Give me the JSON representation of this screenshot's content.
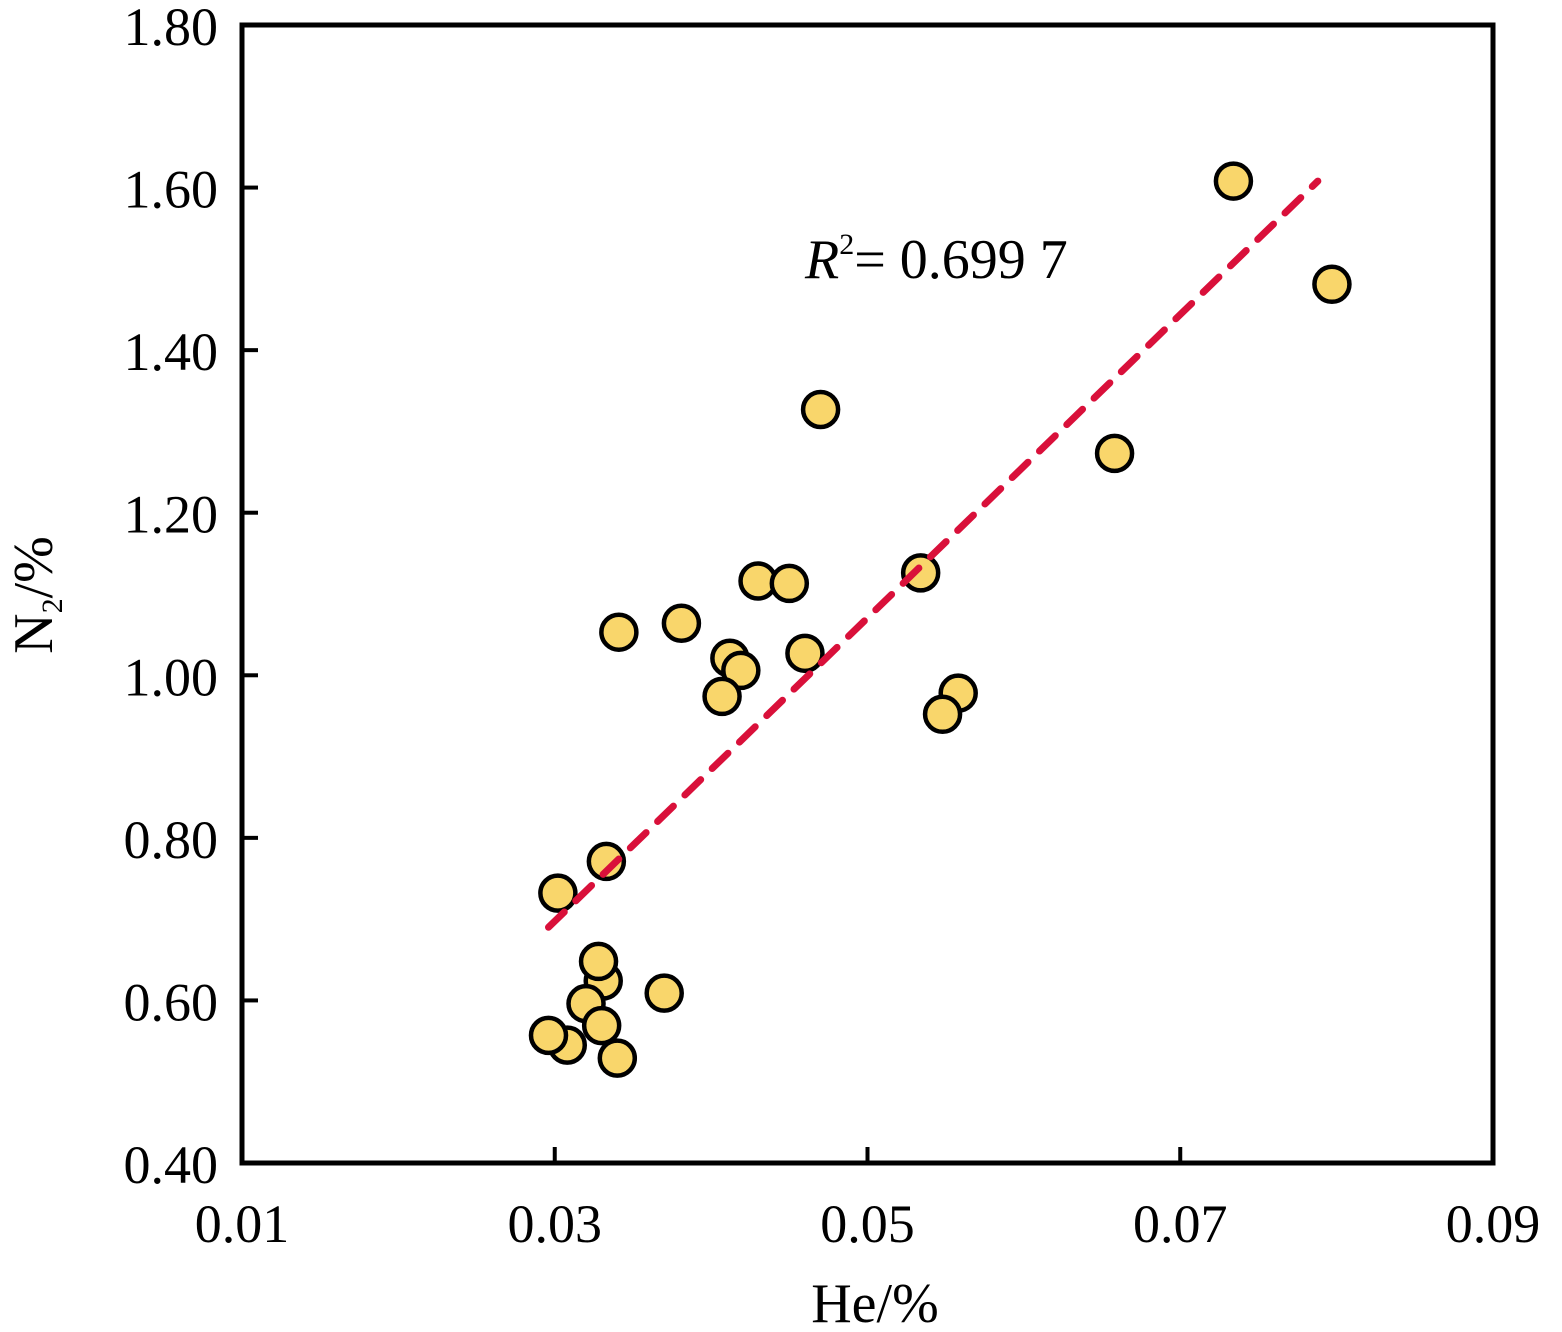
{
  "chart_data": {
    "type": "scatter",
    "title": "",
    "xlabel": "He/%",
    "ylabel_main": "N",
    "ylabel_sub": "2",
    "ylabel_tail": "/%",
    "xlim": [
      0.01,
      0.09
    ],
    "ylim": [
      0.4,
      1.8
    ],
    "xticks": [
      "0.01",
      "0.03",
      "0.05",
      "0.07",
      "0.09"
    ],
    "xtick_values": [
      0.01,
      0.03,
      0.05,
      0.07,
      0.09
    ],
    "yticks": [
      "0.40",
      "0.60",
      "0.80",
      "1.00",
      "1.20",
      "1.40",
      "1.60",
      "1.80"
    ],
    "ytick_values": [
      0.4,
      0.6,
      0.8,
      1.0,
      1.2,
      1.4,
      1.6,
      1.8
    ],
    "grid": false,
    "point_color": "#f9d66b",
    "trend_color": "#d9103a",
    "points": [
      [
        0.0734,
        1.608
      ],
      [
        0.0797,
        1.481
      ],
      [
        0.047,
        1.327
      ],
      [
        0.0658,
        1.273
      ],
      [
        0.0534,
        1.126
      ],
      [
        0.043,
        1.116
      ],
      [
        0.045,
        1.113
      ],
      [
        0.0381,
        1.064
      ],
      [
        0.0341,
        1.053
      ],
      [
        0.046,
        1.027
      ],
      [
        0.0412,
        1.021
      ],
      [
        0.0419,
        1.006
      ],
      [
        0.0407,
        0.974
      ],
      [
        0.0558,
        0.978
      ],
      [
        0.0548,
        0.952
      ],
      [
        0.0333,
        0.771
      ],
      [
        0.0302,
        0.732
      ],
      [
        0.0331,
        0.624
      ],
      [
        0.0328,
        0.648
      ],
      [
        0.032,
        0.596
      ],
      [
        0.037,
        0.609
      ],
      [
        0.0308,
        0.545
      ],
      [
        0.0296,
        0.557
      ],
      [
        0.033,
        0.569
      ],
      [
        0.034,
        0.529
      ]
    ],
    "trendline": {
      "x": [
        0.0296,
        0.0788
      ],
      "y": [
        0.69,
        1.608
      ],
      "style": "dashed"
    },
    "annotation": {
      "r_label": "R",
      "r_sup": "2",
      "text": "= 0.699 7"
    }
  }
}
